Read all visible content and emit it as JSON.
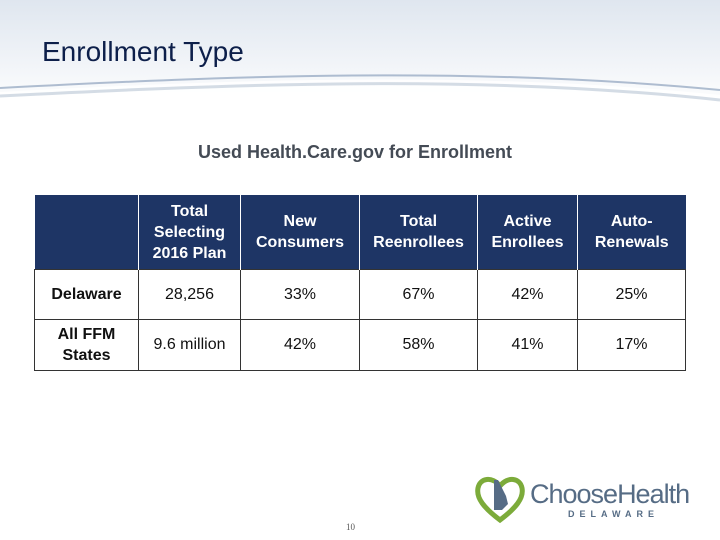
{
  "slide": {
    "title": "Enrollment Type",
    "subtitle": "Used Health.Care.gov for Enrollment",
    "page_number": "10"
  },
  "table": {
    "headers": [
      "",
      "Total Selecting 2016 Plan",
      "New Consumers",
      "Total Reenrollees",
      "Active Enrollees",
      "Auto-Renewals"
    ],
    "rows": [
      {
        "label": "Delaware",
        "cells": [
          "28,256",
          "33%",
          "67%",
          "42%",
          "25%"
        ]
      },
      {
        "label": "All FFM States",
        "cells": [
          "9.6 million",
          "42%",
          "58%",
          "41%",
          "17%"
        ]
      }
    ]
  },
  "logo": {
    "name": "ChooseHealth",
    "subname": "DELAWARE"
  },
  "colors": {
    "header_fill": "#1e3565",
    "title_text": "#0d1f4a",
    "logo_blue": "#566c85",
    "logo_green": "#7cab3a"
  }
}
